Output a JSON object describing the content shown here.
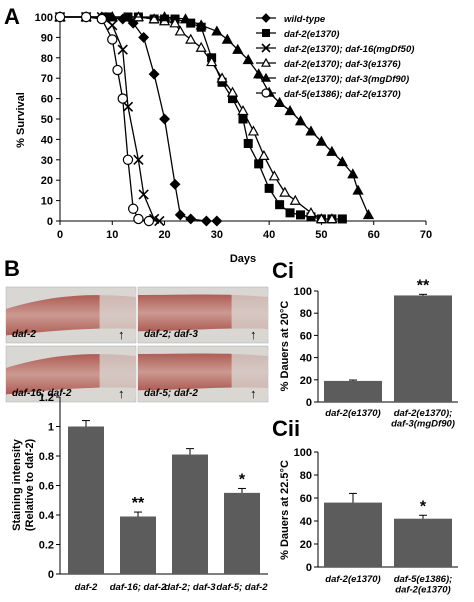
{
  "panel_labels": {
    "A": "A",
    "B": "B",
    "Ci": "Ci",
    "Cii": "Cii"
  },
  "micrograph": {
    "labels": [
      "daf-2",
      "daf-2; daf-3",
      "daf-16; daf-2",
      "daf-5; daf-2"
    ],
    "arrow": "↑",
    "colors": {
      "tissue": "#c98f86",
      "tissue_dark": "#a7473e",
      "background": "#d9d7d3"
    }
  },
  "colors": {
    "bar": "#5c5c5c",
    "line": "#000000",
    "axis": "#000000"
  },
  "chart_data": [
    {
      "type": "line",
      "panel": "A",
      "xlabel": "Days",
      "ylabel": "% Survival",
      "xlim": [
        0,
        70
      ],
      "ylim": [
        0,
        100
      ],
      "xticks": [
        0,
        10,
        20,
        30,
        40,
        50,
        60,
        70
      ],
      "yticks": [
        0,
        10,
        20,
        30,
        40,
        50,
        60,
        70,
        80,
        90,
        100
      ],
      "legend_position": "top-right",
      "series": [
        {
          "name": "wild-type",
          "marker": "diamond",
          "points": [
            [
              0,
              100
            ],
            [
              5,
              100
            ],
            [
              8,
              100
            ],
            [
              12,
              99
            ],
            [
              14,
              97
            ],
            [
              16,
              90
            ],
            [
              18,
              72
            ],
            [
              20,
              50
            ],
            [
              22,
              18
            ],
            [
              23,
              3
            ],
            [
              25,
              1
            ],
            [
              28,
              0
            ],
            [
              30,
              0
            ]
          ]
        },
        {
          "name": "daf-2(e1370)",
          "marker": "square",
          "points": [
            [
              0,
              100
            ],
            [
              5,
              100
            ],
            [
              9,
              100
            ],
            [
              13,
              100
            ],
            [
              15,
              100
            ],
            [
              18,
              99
            ],
            [
              20,
              99
            ],
            [
              22,
              99
            ],
            [
              25,
              97
            ],
            [
              27,
              95
            ],
            [
              29,
              80
            ],
            [
              31,
              68
            ],
            [
              33,
              60
            ],
            [
              35,
              50
            ],
            [
              36,
              38
            ],
            [
              38,
              28
            ],
            [
              40,
              16
            ],
            [
              42,
              8
            ],
            [
              44,
              4
            ],
            [
              46,
              3
            ],
            [
              48,
              2
            ],
            [
              50,
              1
            ],
            [
              52,
              1
            ],
            [
              54,
              1
            ]
          ]
        },
        {
          "name": "daf-2(e1370); daf-16(mgDf50)",
          "marker": "x",
          "points": [
            [
              0,
              100
            ],
            [
              5,
              100
            ],
            [
              8,
              100
            ],
            [
              10,
              96
            ],
            [
              12,
              84
            ],
            [
              13,
              56
            ],
            [
              15,
              30
            ],
            [
              16,
              13
            ],
            [
              18,
              1
            ],
            [
              19,
              0
            ]
          ]
        },
        {
          "name": "daf-2(e1370); daf-3(e1376)",
          "marker": "triangle-open",
          "points": [
            [
              0,
              100
            ],
            [
              5,
              100
            ],
            [
              10,
              100
            ],
            [
              15,
              100
            ],
            [
              18,
              99
            ],
            [
              20,
              98
            ],
            [
              22,
              97
            ],
            [
              23,
              93
            ],
            [
              25,
              89
            ],
            [
              27,
              85
            ],
            [
              29,
              78
            ],
            [
              31,
              70
            ],
            [
              33,
              63
            ],
            [
              35,
              54
            ],
            [
              37,
              44
            ],
            [
              39,
              32
            ],
            [
              41,
              22
            ],
            [
              43,
              14
            ],
            [
              45,
              10
            ],
            [
              48,
              4
            ],
            [
              50,
              1
            ],
            [
              52,
              1
            ]
          ]
        },
        {
          "name": "daf-2(e1370); daf-3(mgDf90)",
          "marker": "triangle-filled",
          "points": [
            [
              0,
              100
            ],
            [
              10,
              100
            ],
            [
              20,
              100
            ],
            [
              24,
              99
            ],
            [
              27,
              96
            ],
            [
              30,
              93
            ],
            [
              32,
              89
            ],
            [
              34,
              84
            ],
            [
              36,
              79
            ],
            [
              38,
              72
            ],
            [
              40,
              63
            ],
            [
              42,
              58
            ],
            [
              44,
              54
            ],
            [
              46,
              49
            ],
            [
              48,
              44
            ],
            [
              50,
              39
            ],
            [
              52,
              34
            ],
            [
              54,
              29
            ],
            [
              56,
              23
            ],
            [
              57,
              15
            ],
            [
              59,
              3
            ]
          ]
        },
        {
          "name": "daf-5(e1386); daf-2(e1370)",
          "marker": "circle-open",
          "points": [
            [
              0,
              100
            ],
            [
              5,
              100
            ],
            [
              8,
              99
            ],
            [
              10,
              89
            ],
            [
              11,
              74
            ],
            [
              12,
              60
            ],
            [
              13,
              30
            ],
            [
              14,
              6
            ],
            [
              15,
              1
            ],
            [
              17,
              0
            ]
          ]
        }
      ]
    },
    {
      "type": "bar",
      "panel": "B",
      "categories": [
        "daf-2",
        "daf-16; daf-2",
        "daf-2; daf-3",
        "daf-5; daf-2"
      ],
      "values": [
        1.0,
        0.39,
        0.81,
        0.55
      ],
      "errors": [
        0.04,
        0.03,
        0.04,
        0.03
      ],
      "significance": [
        "",
        "**",
        "",
        "*"
      ],
      "ylabel": "Staining intensity (Relative to daf-2)",
      "ylim": [
        0,
        1.2
      ],
      "yticks": [
        "0",
        "0.2",
        "0.4",
        "0.6",
        "0.8",
        "1",
        "1.2"
      ]
    },
    {
      "type": "bar",
      "panel": "Ci",
      "categories": [
        "daf-2(e1370)",
        "daf-2(e1370); daf-3(mgDf90)"
      ],
      "values": [
        19,
        96
      ],
      "errors": [
        0.8,
        1.0
      ],
      "significance": [
        "",
        "**"
      ],
      "ylabel": "% Dauers at 20°C",
      "ylim": [
        0,
        100
      ],
      "yticks": [
        0,
        20,
        40,
        60,
        80,
        100
      ]
    },
    {
      "type": "bar",
      "panel": "Cii",
      "categories": [
        "daf-2(e1370)",
        "daf-5(e1386); daf-2(e1370)"
      ],
      "values": [
        56,
        42
      ],
      "errors": [
        8,
        3
      ],
      "significance": [
        "",
        "*"
      ],
      "ylabel": "% Dauers at 22.5°C",
      "ylim": [
        0,
        100
      ],
      "yticks": [
        0,
        20,
        40,
        60,
        80,
        100
      ]
    }
  ]
}
